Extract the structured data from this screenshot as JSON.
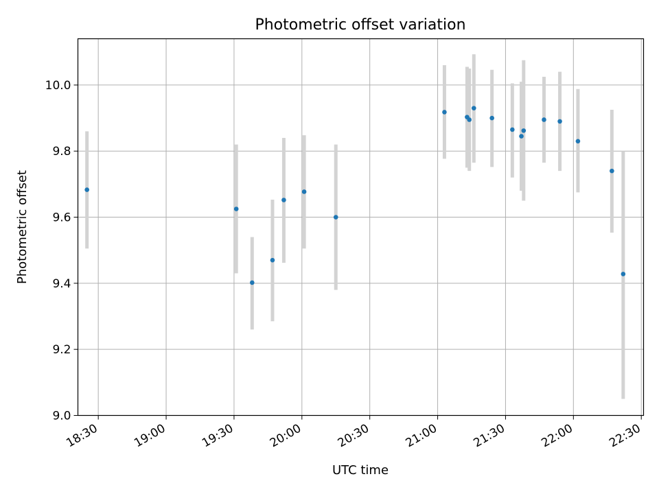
{
  "chart_data": {
    "type": "scatter",
    "title": "Photometric offset variation",
    "xlabel": "UTC time",
    "ylabel": "Photometric offset",
    "xlim": [
      "18:21",
      "22:31"
    ],
    "ylim": [
      9.0,
      10.14
    ],
    "x_ticks": [
      "18:30",
      "19:00",
      "19:30",
      "20:00",
      "20:30",
      "21:00",
      "21:30",
      "22:00",
      "22:30"
    ],
    "y_ticks": [
      "9.0",
      "9.2",
      "9.4",
      "9.6",
      "9.8",
      "10.0"
    ],
    "y_tick_values": [
      9.0,
      9.2,
      9.4,
      9.6,
      9.8,
      10.0
    ],
    "grid": true,
    "point_color": "#1f77b4",
    "errorbar_color": "#d3d3d3",
    "series": [
      {
        "points": [
          {
            "x": "18:25",
            "y": 9.683,
            "y_low": 9.505,
            "y_high": 9.86
          },
          {
            "x": "19:31",
            "y": 9.625,
            "y_low": 9.43,
            "y_high": 9.82
          },
          {
            "x": "19:38",
            "y": 9.402,
            "y_low": 9.26,
            "y_high": 9.54
          },
          {
            "x": "19:47",
            "y": 9.47,
            "y_low": 9.285,
            "y_high": 9.653
          },
          {
            "x": "19:52",
            "y": 9.652,
            "y_low": 9.462,
            "y_high": 9.84
          },
          {
            "x": "20:01",
            "y": 9.677,
            "y_low": 9.505,
            "y_high": 9.848
          },
          {
            "x": "20:15",
            "y": 9.6,
            "y_low": 9.38,
            "y_high": 9.82
          },
          {
            "x": "21:03",
            "y": 9.918,
            "y_low": 9.777,
            "y_high": 10.06
          },
          {
            "x": "21:13",
            "y": 9.903,
            "y_low": 9.75,
            "y_high": 10.055
          },
          {
            "x": "21:14",
            "y": 9.895,
            "y_low": 9.74,
            "y_high": 10.05
          },
          {
            "x": "21:16",
            "y": 9.93,
            "y_low": 9.765,
            "y_high": 10.093
          },
          {
            "x": "21:24",
            "y": 9.9,
            "y_low": 9.752,
            "y_high": 10.046
          },
          {
            "x": "21:33",
            "y": 9.865,
            "y_low": 9.72,
            "y_high": 10.005
          },
          {
            "x": "21:37",
            "y": 9.845,
            "y_low": 9.68,
            "y_high": 10.01
          },
          {
            "x": "21:38",
            "y": 9.862,
            "y_low": 9.65,
            "y_high": 10.075
          },
          {
            "x": "21:47",
            "y": 9.895,
            "y_low": 9.765,
            "y_high": 10.025
          },
          {
            "x": "21:54",
            "y": 9.89,
            "y_low": 9.74,
            "y_high": 10.04
          },
          {
            "x": "22:02",
            "y": 9.83,
            "y_low": 9.675,
            "y_high": 9.988
          },
          {
            "x": "22:17",
            "y": 9.74,
            "y_low": 9.553,
            "y_high": 9.925
          },
          {
            "x": "22:22",
            "y": 9.428,
            "y_low": 9.05,
            "y_high": 9.8
          }
        ]
      }
    ]
  }
}
